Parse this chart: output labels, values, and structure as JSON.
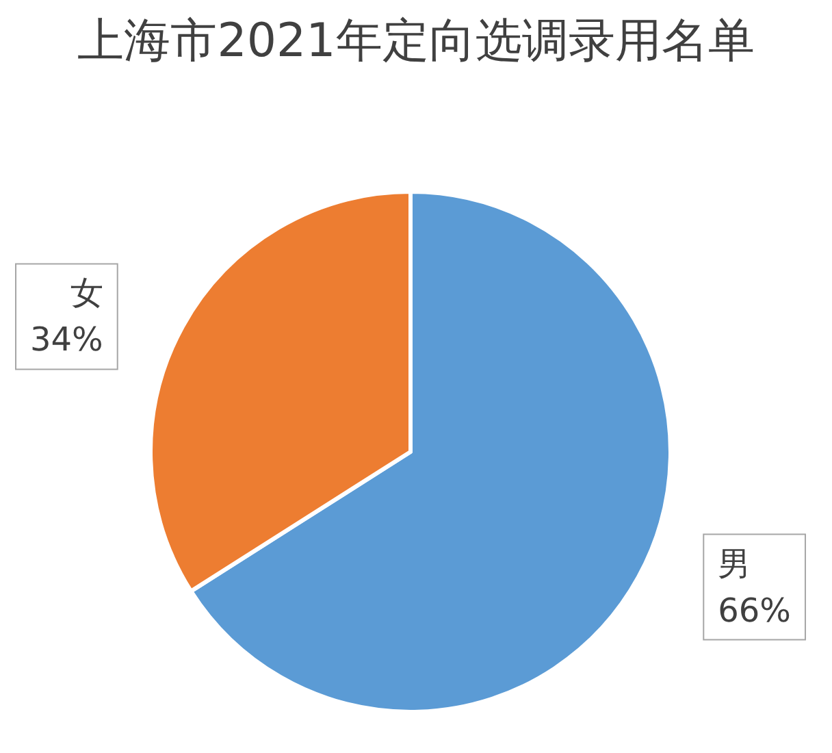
{
  "chart_data": {
    "type": "pie",
    "title": "上海市2021年定向选调录用名单",
    "categories": [
      "男",
      "女"
    ],
    "values": [
      66,
      34
    ],
    "colors": [
      "#5b9bd5",
      "#ed7d31"
    ],
    "value_labels": [
      "66%",
      "34%"
    ]
  }
}
